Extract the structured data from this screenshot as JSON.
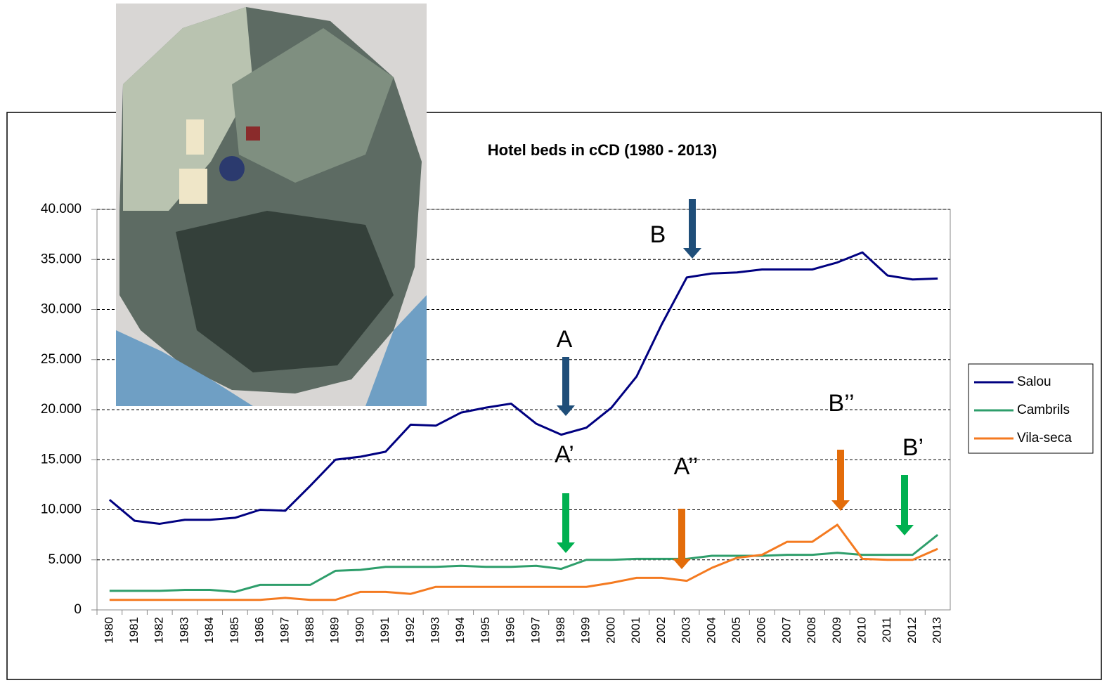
{
  "chart_data": {
    "type": "line",
    "title": "Hotel beds in cCD (1980 - 2013)",
    "categories": [
      "1980",
      "1981",
      "1982",
      "1983",
      "1984",
      "1985",
      "1986",
      "1987",
      "1988",
      "1989",
      "1990",
      "1991",
      "1992",
      "1993",
      "1994",
      "1995",
      "1996",
      "1997",
      "1998",
      "1999",
      "2000",
      "2001",
      "2002",
      "2003",
      "2004",
      "2005",
      "2006",
      "2007",
      "2008",
      "2009",
      "2010",
      "2011",
      "2012",
      "2013"
    ],
    "series": [
      {
        "name": "Salou",
        "color": "#000080",
        "values": [
          11000,
          8900,
          8600,
          9000,
          9000,
          9200,
          10000,
          9900,
          12400,
          15000,
          15300,
          15800,
          18500,
          18400,
          19700,
          20200,
          20600,
          18600,
          17500,
          18200,
          20200,
          23300,
          28500,
          33200,
          33600,
          33700,
          34000,
          34000,
          34000,
          34700,
          35700,
          33400,
          33000,
          33100
        ]
      },
      {
        "name": "Cambrils",
        "color": "#2e9e6b",
        "values": [
          1900,
          1900,
          1900,
          2000,
          2000,
          1800,
          2500,
          2500,
          2500,
          3900,
          4000,
          4300,
          4300,
          4300,
          4400,
          4300,
          4300,
          4400,
          4100,
          5000,
          5000,
          5100,
          5100,
          5100,
          5400,
          5400,
          5400,
          5500,
          5500,
          5700,
          5500,
          5500,
          5500,
          7500
        ]
      },
      {
        "name": "Vila-seca",
        "color": "#f47a20",
        "values": [
          1000,
          1000,
          1000,
          1000,
          1000,
          1000,
          1000,
          1200,
          1000,
          1000,
          1800,
          1800,
          1600,
          2300,
          2300,
          2300,
          2300,
          2300,
          2300,
          2300,
          2700,
          3200,
          3200,
          2900,
          4200,
          5200,
          5500,
          6800,
          6800,
          8500,
          5100,
          5000,
          5000,
          6100
        ]
      }
    ],
    "ylim": [
      0,
      40000
    ],
    "yticks": [
      0,
      {
        "value": 5000,
        "label": "5.000"
      },
      {
        "value": 10000,
        "label": "10.000"
      },
      {
        "value": 15000,
        "label": "15.000"
      },
      {
        "value": 20000,
        "label": "20.000"
      },
      {
        "value": 25000,
        "label": "25.000"
      },
      {
        "value": 30000,
        "label": "30.000"
      },
      {
        "value": 35000,
        "label": "35.000"
      },
      {
        "value": 40000,
        "label": "40.000"
      }
    ],
    "grid": true,
    "legend": "right",
    "annotations": [
      "A",
      "B",
      "A’",
      "A’’",
      "B’",
      "B’’"
    ]
  }
}
